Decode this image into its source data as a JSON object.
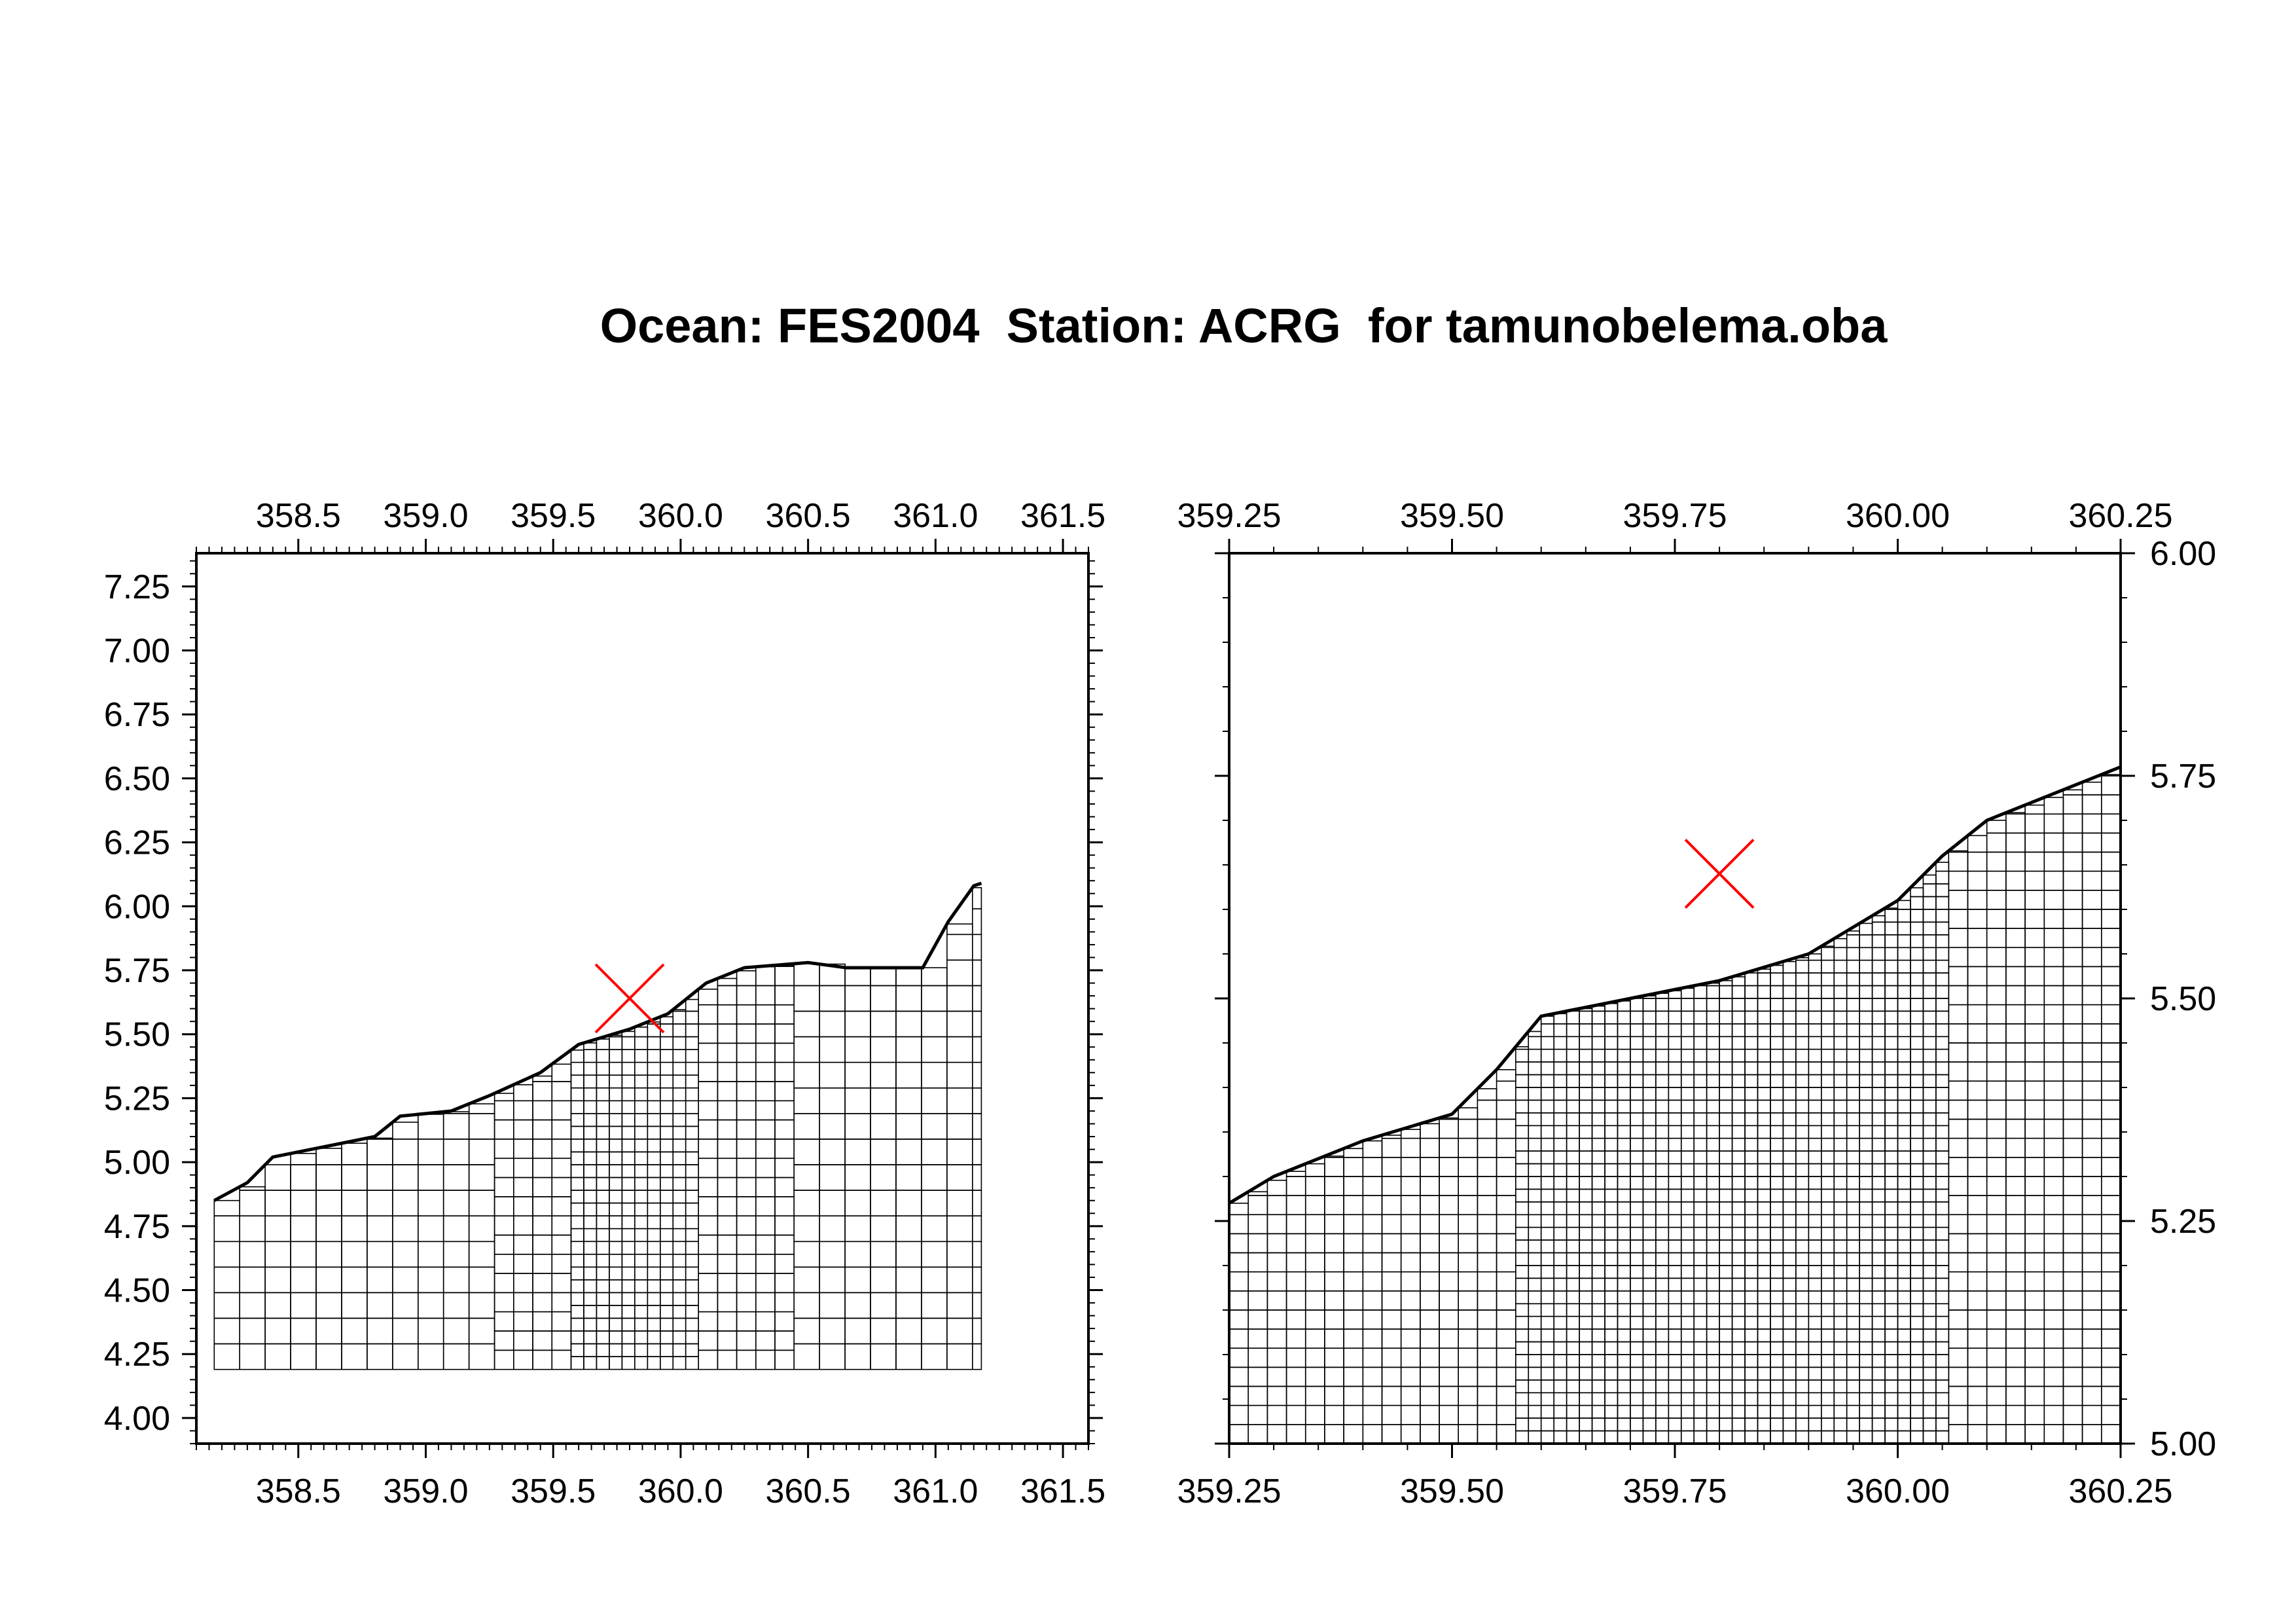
{
  "title": "Ocean: FES2004  Station: ACRG  for tamunobelema.oba",
  "colors": {
    "mesh": "#000000",
    "station_marker": "#ff0000",
    "background": "#ffffff"
  },
  "chart_data": [
    {
      "type": "scatter",
      "panel": "left",
      "title": "",
      "xlabel": "",
      "ylabel": "",
      "xlim": [
        358.1,
        361.6
      ],
      "ylim": [
        3.9,
        7.38
      ],
      "xticks": [
        358.5,
        359.0,
        359.5,
        360.0,
        360.5,
        361.0,
        361.5
      ],
      "xtick_labels": [
        "358.5",
        "359.0",
        "359.5",
        "360.0",
        "360.5",
        "361.0",
        "361.5"
      ],
      "yticks": [
        4.0,
        4.25,
        4.5,
        4.75,
        5.0,
        5.25,
        5.5,
        5.75,
        6.0,
        6.25,
        6.5,
        6.75,
        7.0,
        7.25
      ],
      "ytick_labels": [
        "4.00",
        "4.25",
        "4.50",
        "4.75",
        "5.00",
        "5.25",
        "5.50",
        "5.75",
        "6.00",
        "6.25",
        "6.50",
        "6.75",
        "7.00",
        "7.25"
      ],
      "y_axis_side": "left",
      "station": {
        "x": 359.8,
        "y": 5.64,
        "marker": "x"
      },
      "coastline": [
        [
          358.17,
          4.85
        ],
        [
          358.3,
          4.92
        ],
        [
          358.4,
          5.02
        ],
        [
          358.6,
          5.06
        ],
        [
          358.8,
          5.1
        ],
        [
          358.9,
          5.18
        ],
        [
          359.1,
          5.2
        ],
        [
          359.25,
          5.26
        ],
        [
          359.45,
          5.35
        ],
        [
          359.6,
          5.46
        ],
        [
          359.8,
          5.52
        ],
        [
          359.95,
          5.58
        ],
        [
          360.1,
          5.7
        ],
        [
          360.25,
          5.76
        ],
        [
          360.5,
          5.78
        ],
        [
          360.65,
          5.76
        ],
        [
          360.95,
          5.76
        ],
        [
          361.05,
          5.94
        ],
        [
          361.15,
          6.08
        ],
        [
          361.18,
          6.09
        ]
      ],
      "mesh_bottom": 4.19,
      "mesh_xrange": [
        358.17,
        361.18
      ],
      "grid": false,
      "legend": "none"
    },
    {
      "type": "scatter",
      "panel": "right",
      "title": "",
      "xlabel": "",
      "ylabel": "",
      "xlim": [
        359.25,
        360.25
      ],
      "ylim": [
        5.0,
        6.0
      ],
      "xticks": [
        359.25,
        359.5,
        359.75,
        360.0,
        360.25
      ],
      "xtick_labels": [
        "359.25",
        "359.50",
        "359.75",
        "360.00",
        "360.25"
      ],
      "yticks": [
        5.0,
        5.25,
        5.5,
        5.75,
        6.0
      ],
      "ytick_labels": [
        "5.00",
        "5.25",
        "5.50",
        "5.75",
        "6.00"
      ],
      "y_axis_side": "right",
      "station": {
        "x": 359.8,
        "y": 5.64,
        "marker": "x"
      },
      "coastline": [
        [
          359.25,
          5.27
        ],
        [
          359.3,
          5.3
        ],
        [
          359.4,
          5.34
        ],
        [
          359.5,
          5.37
        ],
        [
          359.55,
          5.42
        ],
        [
          359.6,
          5.48
        ],
        [
          359.7,
          5.5
        ],
        [
          359.8,
          5.52
        ],
        [
          359.9,
          5.55
        ],
        [
          360.0,
          5.61
        ],
        [
          360.05,
          5.66
        ],
        [
          360.1,
          5.7
        ],
        [
          360.2,
          5.74
        ],
        [
          360.25,
          5.76
        ]
      ],
      "mesh_bottom": 5.0,
      "mesh_xrange": [
        359.25,
        360.25
      ],
      "grid": false,
      "legend": "none"
    }
  ]
}
